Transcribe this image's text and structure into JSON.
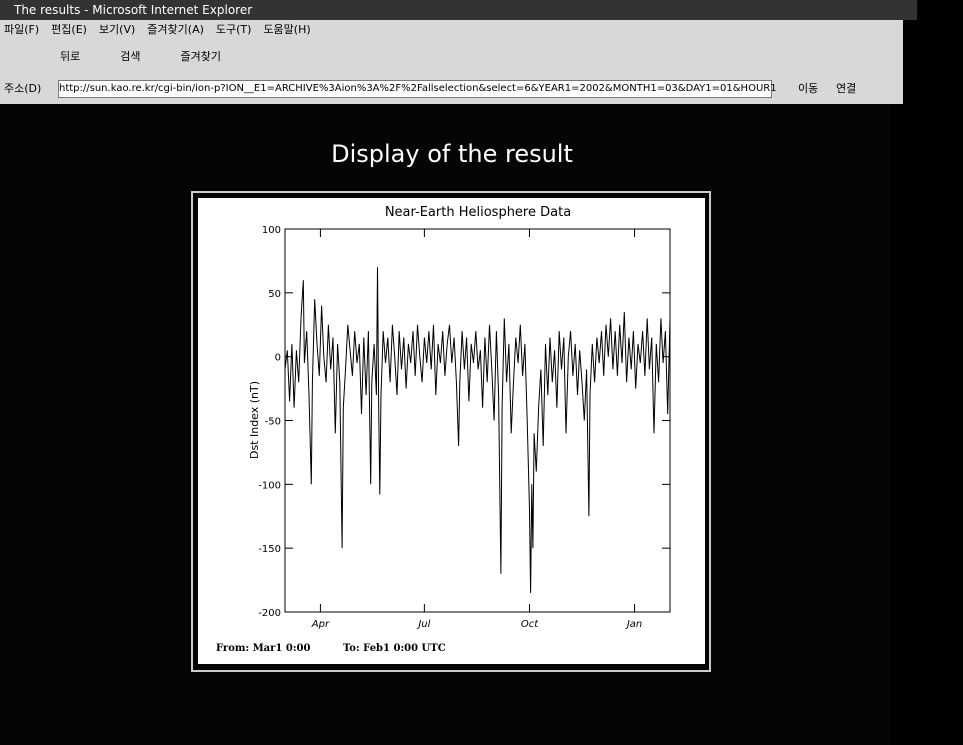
{
  "window": {
    "title": "The results - Microsoft Internet Explorer",
    "menu": [
      "파일(F)",
      "편집(E)",
      "보기(V)",
      "즐겨찾기(A)",
      "도구(T)",
      "도움말(H)"
    ],
    "toolbar": [
      "뒤로",
      "검색",
      "즐겨찾기"
    ],
    "address": {
      "label": "주소(D)",
      "url": "http://sun.kao.re.kr/cgi-bin/ion-p?ION__E1=ARCHIVE%3Aion%3A%2F%2Fallselection&select=6&YEAR1=2002&MONTH1=03&DAY1=01&HOUR1",
      "go": "이동",
      "links": "연결"
    }
  },
  "heading": "Display of the result",
  "chart_data": {
    "type": "line",
    "title": "Near-Earth Heliosphere Data",
    "y_label": "Dst Index (nT)",
    "annotations": [
      "From: Mar1 0:00",
      "To: Feb1 0:00 UTC"
    ],
    "xlim": [
      0,
      337
    ],
    "xticks": [
      {
        "value": 31,
        "label": "Apr"
      },
      {
        "value": 122,
        "label": "Jul"
      },
      {
        "value": 214,
        "label": "Oct"
      },
      {
        "value": 306,
        "label": "Jan"
      }
    ],
    "ylim": [
      -200,
      100
    ],
    "yticks": [
      100,
      50,
      0,
      -50,
      -100,
      -150,
      -200
    ],
    "color": "#000000",
    "x": [
      0,
      2,
      4,
      6,
      8,
      10,
      12,
      14,
      16,
      17,
      19,
      21,
      23,
      24,
      26,
      28,
      30,
      32,
      34,
      36,
      38,
      40,
      42,
      44,
      46,
      48,
      50,
      51,
      53,
      55,
      57,
      59,
      61,
      63,
      65,
      67,
      69,
      71,
      73,
      75,
      76,
      78,
      80,
      81,
      82,
      83,
      84,
      86,
      88,
      90,
      92,
      94,
      96,
      98,
      100,
      102,
      104,
      106,
      108,
      110,
      112,
      114,
      116,
      118,
      120,
      122,
      124,
      126,
      128,
      130,
      132,
      134,
      136,
      138,
      140,
      142,
      144,
      146,
      148,
      150,
      152,
      153,
      155,
      157,
      159,
      161,
      163,
      165,
      167,
      169,
      171,
      173,
      175,
      177,
      179,
      181,
      183,
      185,
      187,
      189,
      190,
      192,
      194,
      196,
      198,
      200,
      202,
      204,
      206,
      208,
      210,
      212,
      214,
      215,
      216,
      217,
      218,
      220,
      222,
      224,
      226,
      228,
      230,
      232,
      234,
      236,
      238,
      240,
      242,
      244,
      246,
      248,
      250,
      252,
      254,
      256,
      258,
      260,
      262,
      264,
      266,
      267,
      269,
      271,
      273,
      275,
      277,
      279,
      281,
      283,
      285,
      287,
      289,
      291,
      293,
      295,
      297,
      299,
      301,
      303,
      305,
      307,
      309,
      311,
      313,
      315,
      317,
      319,
      321,
      323,
      325,
      327,
      329,
      331,
      333,
      335,
      337
    ],
    "values": [
      -10,
      5,
      -35,
      10,
      -40,
      5,
      -20,
      30,
      60,
      -5,
      20,
      -30,
      -100,
      -20,
      45,
      10,
      -15,
      40,
      0,
      -20,
      25,
      -10,
      15,
      -60,
      10,
      -20,
      -150,
      -40,
      -10,
      25,
      5,
      -15,
      20,
      -5,
      10,
      -45,
      15,
      -30,
      20,
      -100,
      -20,
      10,
      -30,
      70,
      -40,
      -108,
      -30,
      20,
      -5,
      15,
      -20,
      25,
      0,
      -30,
      20,
      -10,
      15,
      -25,
      10,
      -5,
      20,
      -15,
      25,
      0,
      -20,
      15,
      -5,
      20,
      -10,
      25,
      -30,
      10,
      -5,
      20,
      -15,
      10,
      25,
      -5,
      15,
      -20,
      -70,
      -20,
      20,
      -10,
      15,
      -35,
      10,
      -5,
      20,
      -10,
      5,
      -40,
      15,
      -20,
      25,
      -10,
      -50,
      20,
      -30,
      -170,
      -40,
      30,
      -20,
      10,
      -60,
      -20,
      15,
      -5,
      25,
      -15,
      10,
      -50,
      -120,
      -185,
      -100,
      -150,
      -60,
      -90,
      -40,
      -10,
      -70,
      10,
      -30,
      15,
      -20,
      5,
      -40,
      20,
      -10,
      15,
      -60,
      0,
      20,
      -15,
      10,
      -30,
      5,
      -20,
      -50,
      -10,
      -125,
      -30,
      10,
      -20,
      15,
      -5,
      20,
      -15,
      25,
      0,
      30,
      -10,
      20,
      -15,
      25,
      -5,
      35,
      -20,
      15,
      -10,
      20,
      -25,
      10,
      -5,
      20,
      -15,
      30,
      -10,
      15,
      -60,
      10,
      -20,
      30,
      -5,
      20,
      -45,
      30
    ]
  }
}
